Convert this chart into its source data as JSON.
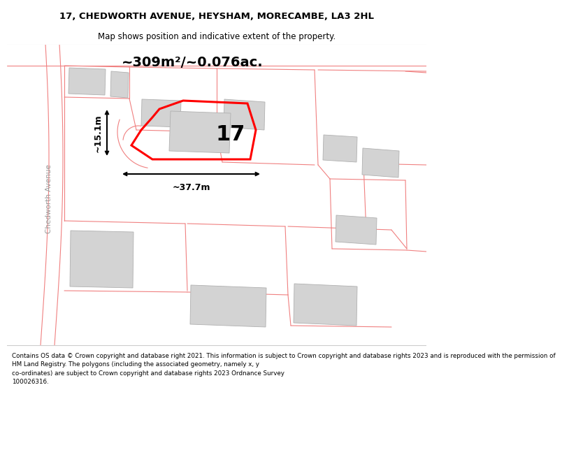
{
  "title_line1": "17, CHEDWORTH AVENUE, HEYSHAM, MORECAMBE, LA3 2HL",
  "title_line2": "Map shows position and indicative extent of the property.",
  "area_text": "~309m²/~0.076ac.",
  "number_label": "17",
  "dim_width": "~37.7m",
  "dim_height": "~15.1m",
  "road_label": "Chedworth Avenue",
  "footer_text": "Contains OS data © Crown copyright and database right 2021. This information is subject to Crown copyright and database rights 2023 and is reproduced with the permission of\nHM Land Registry. The polygons (including the associated geometry, namely x, y\nco-ordinates) are subject to Crown copyright and database rights 2023 Ordnance Survey\n100026316.",
  "bg_color": "#ffffff",
  "map_bg": "#ffffff",
  "plot_stroke": "#ff0000",
  "building_fill": "#d3d3d3",
  "building_edge": "#b0b0b0",
  "road_color": "#f08080",
  "title_fontsize": 9.5,
  "subtitle_fontsize": 8.5,
  "area_fontsize": 14,
  "number_fontsize": 22,
  "dim_fontsize": 9,
  "road_label_fontsize": 7.5,
  "footer_fontsize": 6.3
}
